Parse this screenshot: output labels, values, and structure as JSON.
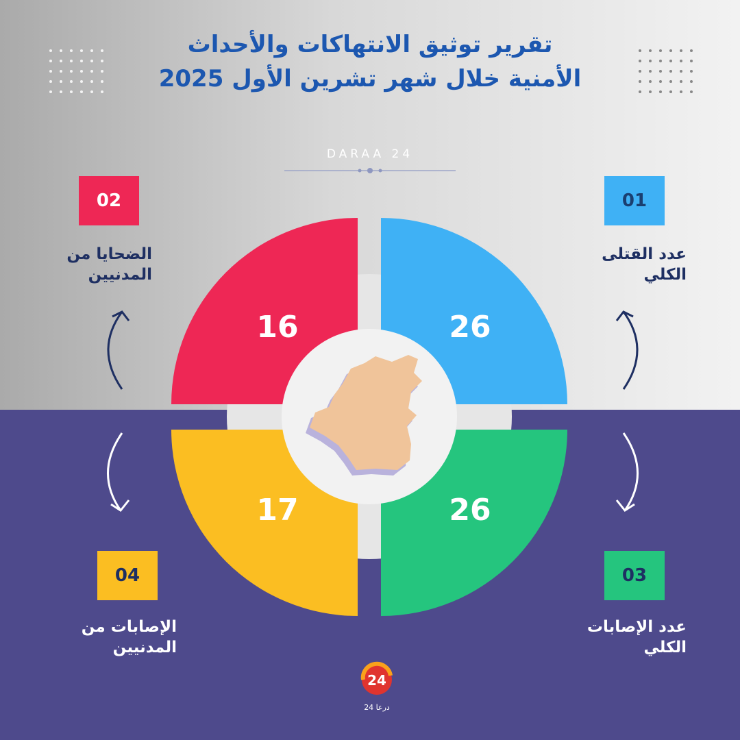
{
  "title": {
    "line1": "تقرير توثيق الانتهاكات والأحداث",
    "line2": "الأمنية خلال شهر تشرين الأول 2025"
  },
  "brand": "DARAA 24",
  "colors": {
    "title": "#1c57b0",
    "blue": "#3fb1f5",
    "red": "#ee2755",
    "green": "#25c57e",
    "yellow": "#fbbe22",
    "purple_bg": "#4e4a8c",
    "label_dark": "#1e2f62"
  },
  "stats": [
    {
      "badge": "01",
      "label_line1": "عدد القتلى",
      "label_line2": "الكلي",
      "value": "26",
      "color": "blue"
    },
    {
      "badge": "02",
      "label_line1": "الضحايا من",
      "label_line2": "المدنيين",
      "value": "16",
      "color": "red"
    },
    {
      "badge": "03",
      "label_line1": "عدد الإصابات",
      "label_line2": "الكلي",
      "value": "26",
      "color": "green"
    },
    {
      "badge": "04",
      "label_line1": "الإصابات من",
      "label_line2": "المدنيين",
      "value": "17",
      "color": "yellow"
    }
  ],
  "center_icon": "daraa-map-icon",
  "logo": {
    "mark": "24",
    "caption": "درعا 24"
  }
}
